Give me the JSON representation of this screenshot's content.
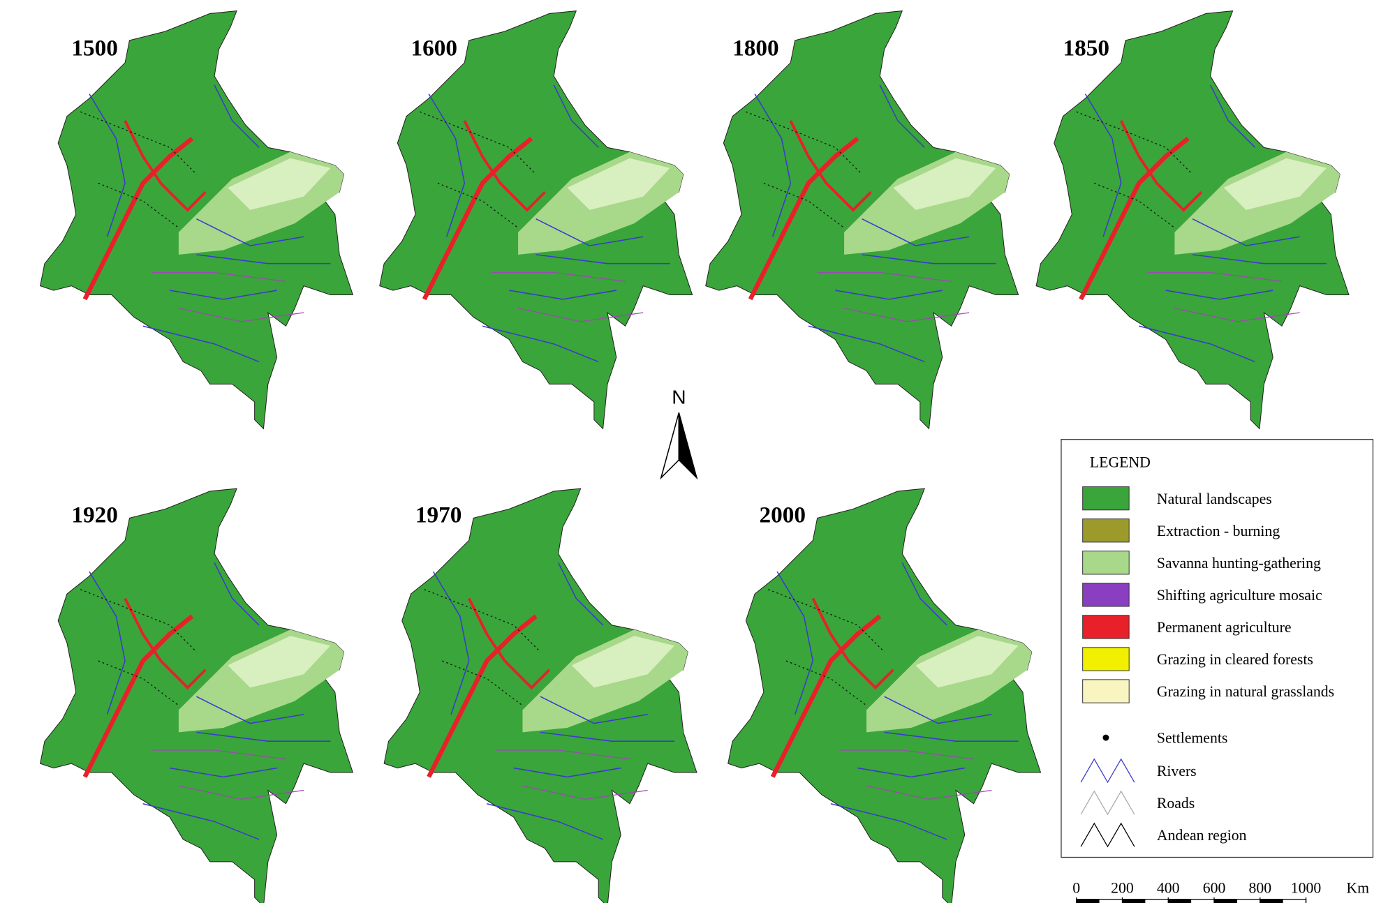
{
  "maps": [
    {
      "year": "1500"
    },
    {
      "year": "1600"
    },
    {
      "year": "1800"
    },
    {
      "year": "1850"
    },
    {
      "year": "1920"
    },
    {
      "year": "1970"
    },
    {
      "year": "2000"
    }
  ],
  "north": "N",
  "legend": {
    "title": "LEGEND",
    "items": [
      {
        "label": "Natural landscapes",
        "color": "#3aa53a"
      },
      {
        "label": "Extraction - burning",
        "color": "#9c9a2a"
      },
      {
        "label": "Savanna hunting-gathering",
        "color": "#a8d88a"
      },
      {
        "label": "Shifting agriculture mosaic",
        "color": "#8a3fc0"
      },
      {
        "label": "Permanent agriculture",
        "color": "#e8202a"
      },
      {
        "label": "Grazing in cleared forests",
        "color": "#f0f000"
      },
      {
        "label": "Grazing in natural grasslands",
        "color": "#f8f5c0"
      }
    ],
    "symbols": [
      "Settlements",
      "Rivers",
      "Roads",
      "Andean region"
    ]
  },
  "scale": {
    "ticks": [
      0,
      200,
      400,
      600,
      800,
      1000
    ],
    "unit": "Km"
  }
}
